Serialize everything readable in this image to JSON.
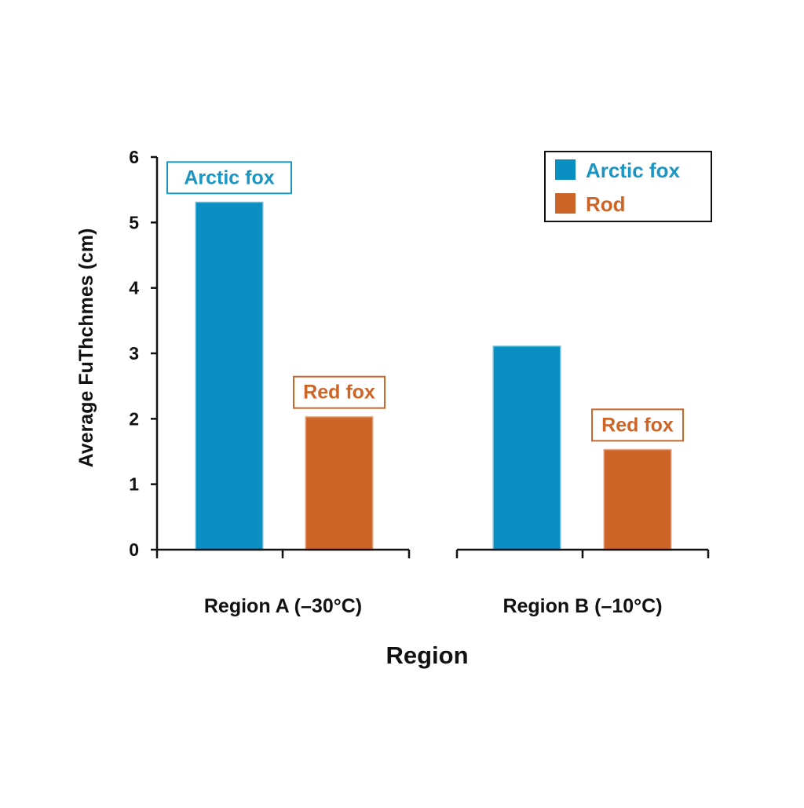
{
  "chart_data": {
    "type": "bar",
    "xlabel": "Region",
    "ylabel": "Average FuThchmes (cm)",
    "ylim": [
      0,
      6
    ],
    "yticks": [
      0,
      1,
      2,
      3,
      4,
      5,
      6
    ],
    "grid": false,
    "categories": [
      "Region A (–30°C)",
      "Region B (–10°C)"
    ],
    "series": [
      {
        "name": "Arctic fox",
        "color": "#0a8fc2",
        "values": [
          5.3,
          3.1
        ]
      },
      {
        "name": "Rod",
        "color": "#cd6428",
        "values": [
          2.02,
          1.52
        ]
      }
    ],
    "annotations": [
      {
        "category": 0,
        "series": 0,
        "text": "Arctic fox",
        "color": "#1b96c4"
      },
      {
        "category": 0,
        "series": 1,
        "text": "Red fox",
        "color": "#cd6428"
      },
      {
        "category": 1,
        "series": 1,
        "text": "Red fox",
        "color": "#cd6428"
      }
    ],
    "legend": {
      "placement": "top-right",
      "entries": [
        {
          "label": "Arctic fox",
          "color": "#0a8fc2",
          "text_color": "#1b96c4"
        },
        {
          "label": "Rod",
          "color": "#cd6428",
          "text_color": "#cd6428"
        }
      ]
    }
  }
}
